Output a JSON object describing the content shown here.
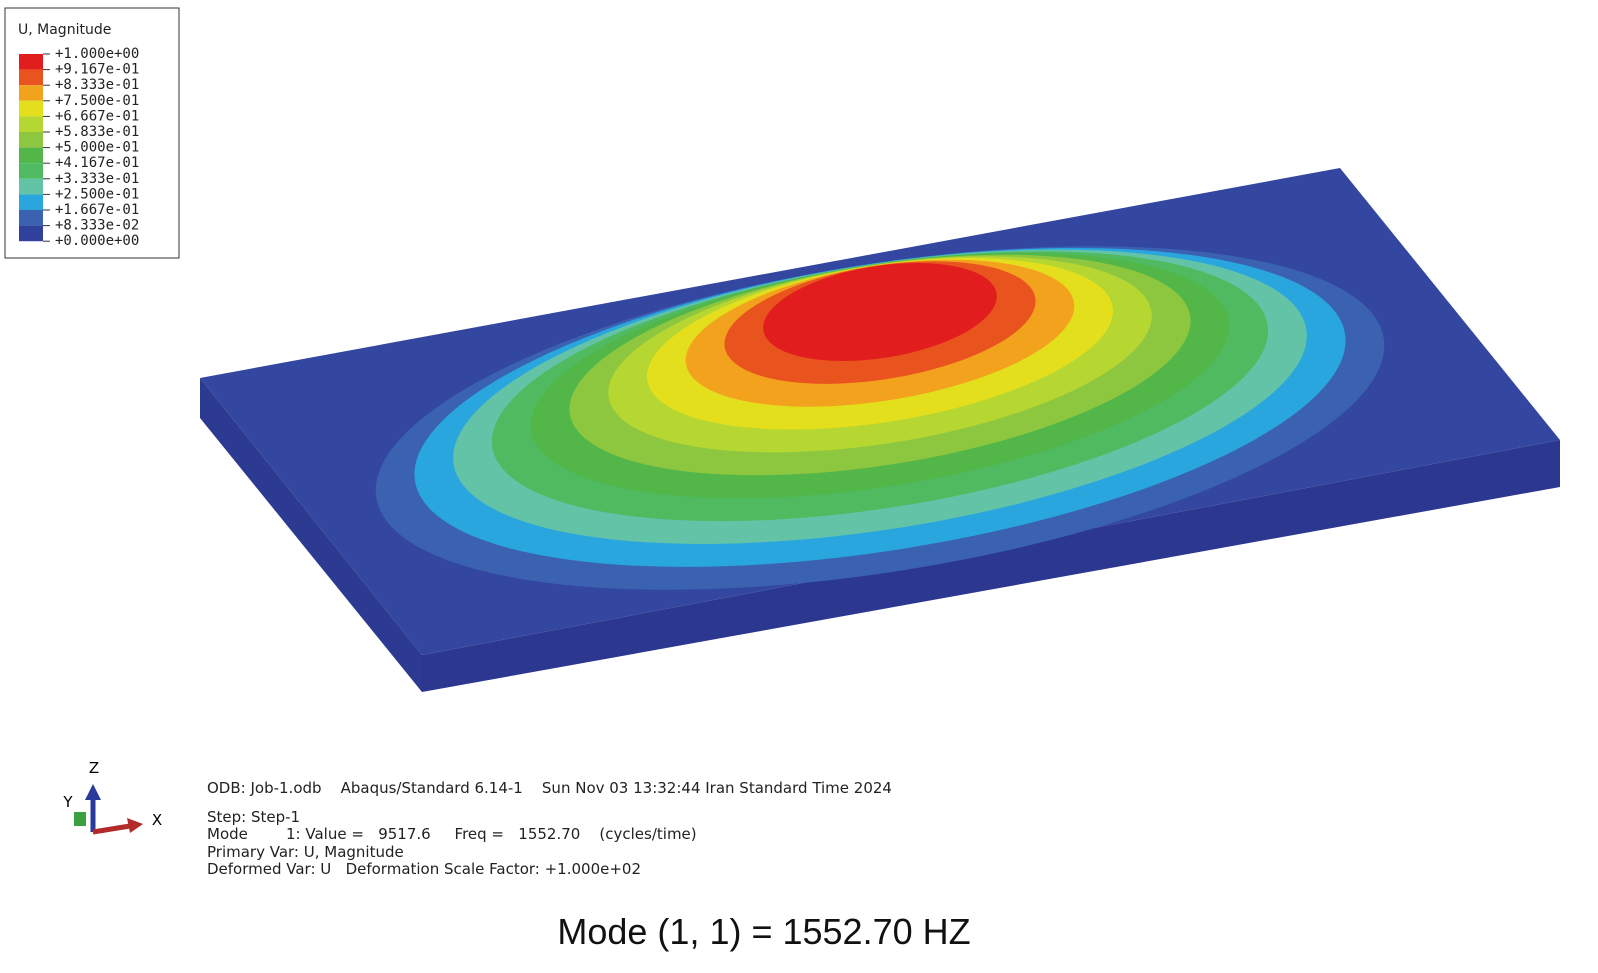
{
  "legend": {
    "title": "U, Magnitude",
    "labels": [
      "+1.000e+00",
      "+9.167e-01",
      "+8.333e-01",
      "+7.500e-01",
      "+6.667e-01",
      "+5.833e-01",
      "+5.000e-01",
      "+4.167e-01",
      "+3.333e-01",
      "+2.500e-01",
      "+1.667e-01",
      "+8.333e-02",
      "+0.000e+00"
    ],
    "colors": [
      "#e21d1d",
      "#e8531e",
      "#f2a21d",
      "#e4df1c",
      "#b6d631",
      "#8dc63f",
      "#52b748",
      "#4fba5f",
      "#62c3a6",
      "#2aa6df",
      "#3a62b1",
      "#2f409d"
    ]
  },
  "triad": {
    "z": "Z",
    "y": "Y",
    "x": "X"
  },
  "info": [
    "ODB: Job-1.odb    Abaqus/Standard 6.14-1    Sun Nov 03 13:32:44 Iran Standard Time 2024",
    "Step: Step-1",
    "Mode        1: Value =   9517.6     Freq =   1552.70    (cycles/time)",
    "Primary Var: U, Magnitude",
    "Deformed Var: U   Deformation Scale Factor: +1.000e+02"
  ],
  "caption": "Mode (1, 1) = 1552.70 HZ"
}
